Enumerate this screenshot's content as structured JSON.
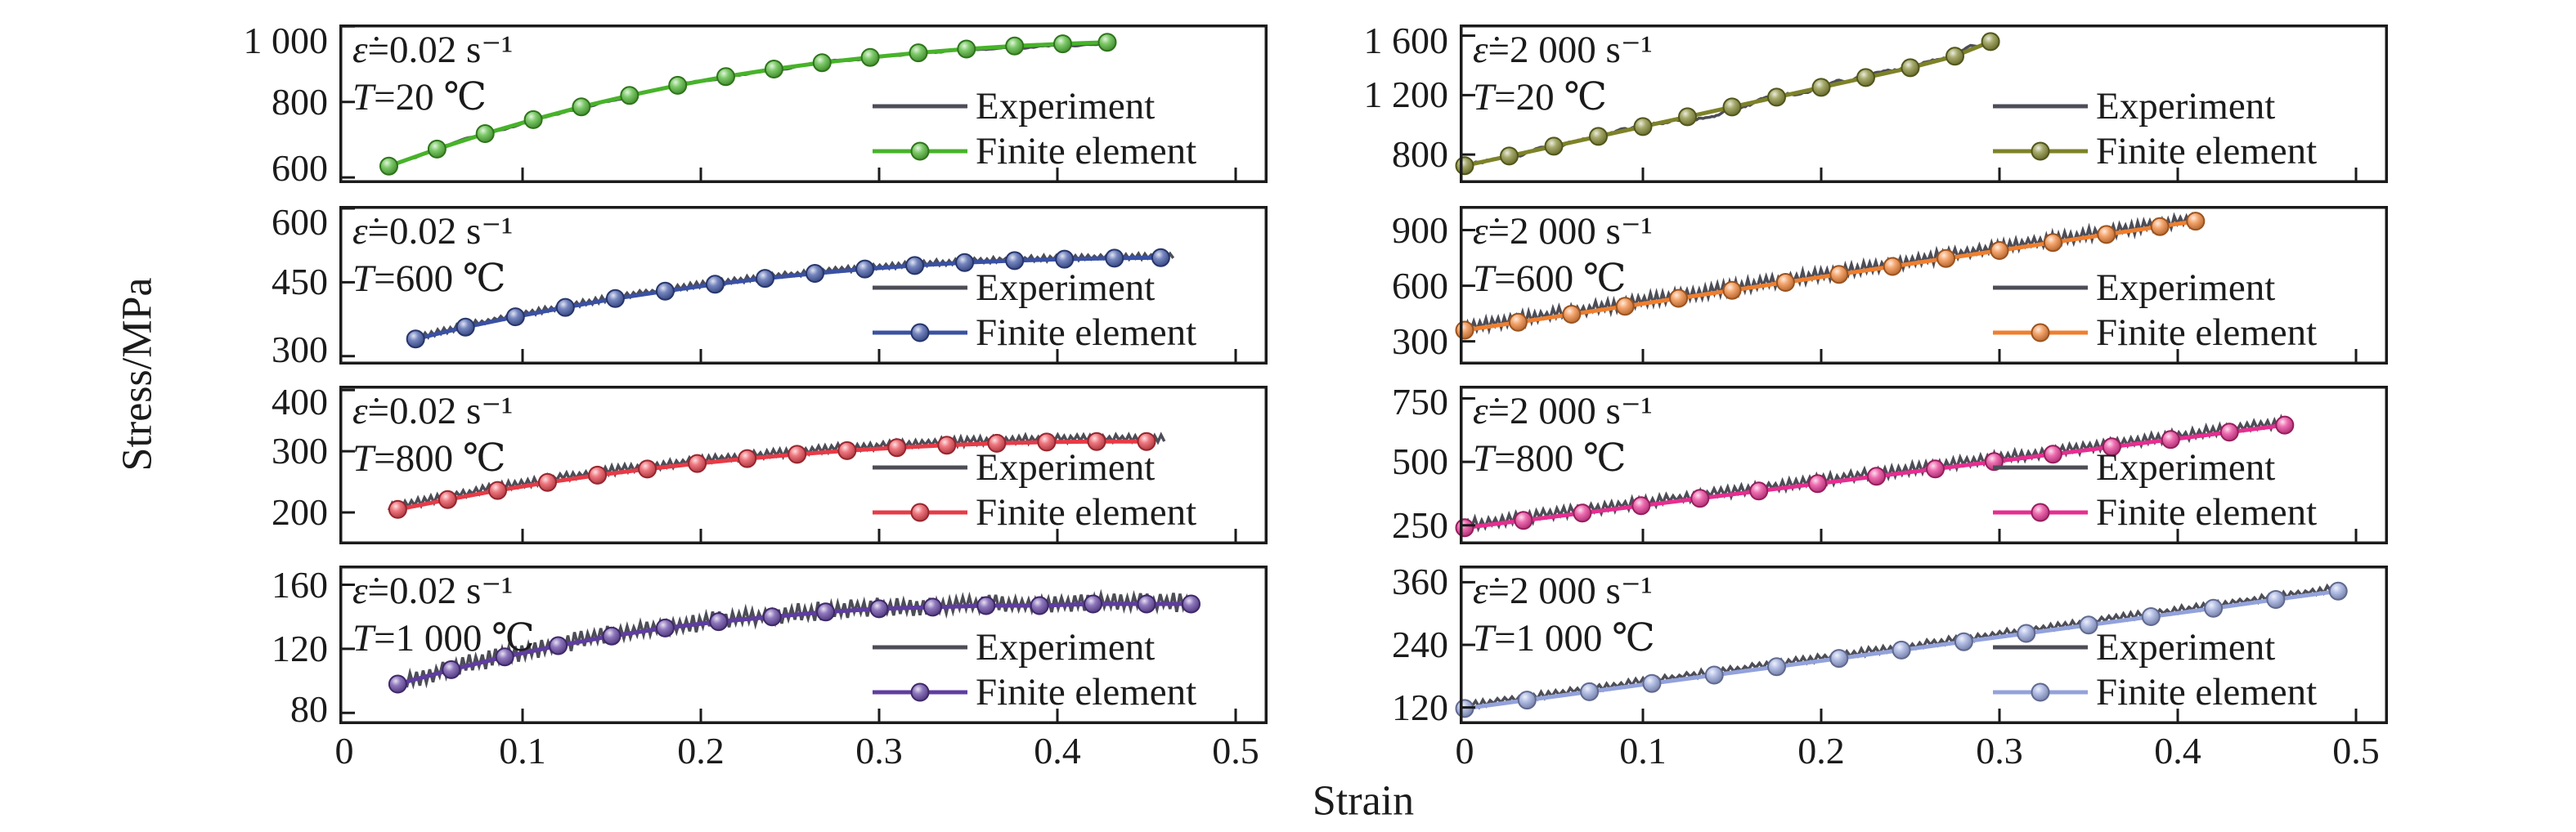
{
  "figure": {
    "ylabel": "Stress/MPa",
    "xlabel": "Strain",
    "legend": {
      "experiment": "Experiment",
      "finite_element": "Finite element"
    },
    "colors": {
      "experiment_line": "#4d4d57",
      "axis": "#1b1b1b",
      "background": "#ffffff"
    },
    "xlim": [
      0,
      0.5
    ],
    "x_ticks": [
      {
        "v": 0,
        "label": "0"
      },
      {
        "v": 0.1,
        "label": "0.1"
      },
      {
        "v": 0.2,
        "label": "0.2"
      },
      {
        "v": 0.3,
        "label": "0.3"
      },
      {
        "v": 0.4,
        "label": "0.4"
      },
      {
        "v": 0.5,
        "label": "0.5"
      }
    ]
  },
  "chart_data": [
    {
      "id": "rate0.02-T20",
      "type": "line",
      "strain_rate": {
        "symbol": "ε̇",
        "text": "=0.02 s⁻¹"
      },
      "temperature": {
        "symbol": "T",
        "text": "=20 ℃"
      },
      "ylim": [
        585,
        1005
      ],
      "y_ticks": [
        {
          "v": 600,
          "label": "600"
        },
        {
          "v": 800,
          "label": "800"
        },
        {
          "v": 1000,
          "label": "1 000"
        }
      ],
      "series": [
        {
          "name": "Experiment",
          "style": "line",
          "x_range": [
            0.03,
            0.43
          ],
          "offset": -2,
          "noise_amp": 4,
          "noise_type": "wander"
        },
        {
          "name": "Finite element",
          "style": "line+markers",
          "color": "#47b32a",
          "x": [
            0.025,
            0.052,
            0.079,
            0.106,
            0.133,
            0.16,
            0.187,
            0.214,
            0.241,
            0.268,
            0.295,
            0.322,
            0.349,
            0.376,
            0.403,
            0.428
          ],
          "y": [
            630,
            675,
            716,
            753,
            787,
            817,
            844,
            867,
            887,
            904,
            918,
            930,
            940,
            948,
            954,
            958
          ]
        }
      ]
    },
    {
      "id": "rate2000-T20",
      "type": "line",
      "strain_rate": {
        "symbol": "ε̇",
        "text": "=2 000 s⁻¹"
      },
      "temperature": {
        "symbol": "T",
        "text": "=20 ℃"
      },
      "ylim": [
        608,
        1675
      ],
      "y_ticks": [
        {
          "v": 800,
          "label": "800"
        },
        {
          "v": 1200,
          "label": "1 200"
        },
        {
          "v": 1600,
          "label": "1 600"
        }
      ],
      "series": [
        {
          "name": "Experiment",
          "style": "line",
          "x_range": [
            0,
            0.3
          ],
          "offset": 0,
          "noise_amp": 22,
          "noise_type": "wander"
        },
        {
          "name": "Finite element",
          "style": "line+markers",
          "color": "#7d8228",
          "x": [
            0,
            0.025,
            0.05,
            0.075,
            0.1,
            0.125,
            0.15,
            0.175,
            0.2,
            0.225,
            0.25,
            0.275,
            0.295
          ],
          "y": [
            725,
            790,
            856,
            922,
            988,
            1054,
            1120,
            1186,
            1252,
            1318,
            1384,
            1462,
            1560
          ]
        }
      ]
    },
    {
      "id": "rate0.02-T600",
      "type": "line",
      "strain_rate": {
        "symbol": "ε̇",
        "text": "=0.02 s⁻¹"
      },
      "temperature": {
        "symbol": "T",
        "text": "=600 ℃"
      },
      "ylim": [
        283,
        605
      ],
      "y_ticks": [
        {
          "v": 300,
          "label": "300"
        },
        {
          "v": 450,
          "label": "450"
        },
        {
          "v": 600,
          "label": "600"
        }
      ],
      "series": [
        {
          "name": "Experiment",
          "style": "line",
          "x_range": [
            0.04,
            0.465
          ],
          "offset": 3,
          "noise_amp": 6,
          "noise_type": "zigzag"
        },
        {
          "name": "Finite element",
          "style": "line+markers",
          "color": "#3a51a3",
          "x": [
            0.04,
            0.068,
            0.096,
            0.124,
            0.152,
            0.18,
            0.208,
            0.236,
            0.264,
            0.292,
            0.32,
            0.348,
            0.376,
            0.404,
            0.432,
            0.458
          ],
          "y": [
            335,
            359,
            380,
            399,
            417,
            432,
            446,
            458,
            468,
            477,
            484,
            490,
            494,
            497,
            499,
            500
          ]
        }
      ]
    },
    {
      "id": "rate2000-T600",
      "type": "line",
      "strain_rate": {
        "symbol": "ε̇",
        "text": "=2 000 s⁻¹"
      },
      "temperature": {
        "symbol": "T",
        "text": "=600 ℃"
      },
      "ylim": [
        175,
        1030
      ],
      "y_ticks": [
        {
          "v": 300,
          "label": "300"
        },
        {
          "v": 600,
          "label": "600"
        },
        {
          "v": 900,
          "label": "900"
        }
      ],
      "series": [
        {
          "name": "Experiment",
          "style": "line",
          "x_range": [
            0,
            0.41
          ],
          "offset": 15,
          "noise_amp": 35,
          "noise_type": "zigzag"
        },
        {
          "name": "Finite element",
          "style": "line+markers",
          "color": "#ef7f2f",
          "x": [
            0,
            0.03,
            0.06,
            0.09,
            0.12,
            0.15,
            0.18,
            0.21,
            0.24,
            0.27,
            0.3,
            0.33,
            0.36,
            0.39,
            0.41
          ],
          "y": [
            360,
            403,
            446,
            489,
            532,
            575,
            618,
            661,
            704,
            747,
            790,
            833,
            876,
            919,
            948
          ]
        }
      ]
    },
    {
      "id": "rate0.02-T800",
      "type": "line",
      "strain_rate": {
        "symbol": "ε̇",
        "text": "=0.02 s⁻¹"
      },
      "temperature": {
        "symbol": "T",
        "text": "=800 ℃"
      },
      "ylim": [
        148,
        407
      ],
      "y_ticks": [
        {
          "v": 200,
          "label": "200"
        },
        {
          "v": 300,
          "label": "300"
        },
        {
          "v": 400,
          "label": "400"
        }
      ],
      "series": [
        {
          "name": "Experiment",
          "style": "line",
          "x_range": [
            0.025,
            0.46
          ],
          "offset": 5,
          "noise_amp": 7,
          "noise_type": "zigzag"
        },
        {
          "name": "Finite element",
          "style": "line+markers",
          "color": "#e63b47",
          "x": [
            0.03,
            0.058,
            0.086,
            0.114,
            0.142,
            0.17,
            0.198,
            0.226,
            0.254,
            0.282,
            0.31,
            0.338,
            0.366,
            0.394,
            0.422,
            0.45
          ],
          "y": [
            205,
            221,
            236,
            249,
            261,
            271,
            280,
            288,
            295,
            301,
            306,
            310,
            313,
            315,
            316,
            316
          ]
        }
      ]
    },
    {
      "id": "rate2000-T800",
      "type": "line",
      "strain_rate": {
        "symbol": "ε̇",
        "text": "=2 000 s⁻¹"
      },
      "temperature": {
        "symbol": "T",
        "text": "=800 ℃"
      },
      "ylim": [
        175,
        800
      ],
      "y_ticks": [
        {
          "v": 250,
          "label": "250"
        },
        {
          "v": 500,
          "label": "500"
        },
        {
          "v": 750,
          "label": "750"
        }
      ],
      "series": [
        {
          "name": "Experiment",
          "style": "line",
          "x_range": [
            0,
            0.46
          ],
          "offset": 12,
          "noise_amp": 22,
          "noise_type": "zigzag"
        },
        {
          "name": "Finite element",
          "style": "line+markers",
          "color": "#e62e90",
          "x": [
            0,
            0.033,
            0.066,
            0.099,
            0.132,
            0.165,
            0.198,
            0.231,
            0.264,
            0.297,
            0.33,
            0.363,
            0.396,
            0.429,
            0.46
          ],
          "y": [
            240,
            269,
            298,
            327,
            356,
            385,
            414,
            443,
            472,
            501,
            530,
            559,
            588,
            617,
            645
          ]
        }
      ]
    },
    {
      "id": "rate0.02-T1000",
      "type": "line",
      "strain_rate": {
        "symbol": "ε̇",
        "text": "=0.02 s⁻¹"
      },
      "temperature": {
        "symbol": "T",
        "text": "=1 000 ℃"
      },
      "ylim": [
        73,
        172
      ],
      "y_ticks": [
        {
          "v": 80,
          "label": "80"
        },
        {
          "v": 120,
          "label": "120"
        },
        {
          "v": 160,
          "label": "160"
        }
      ],
      "series": [
        {
          "name": "Experiment",
          "style": "line",
          "x_range": [
            0.035,
            0.478
          ],
          "offset": 1,
          "noise_amp": 6,
          "noise_type": "zigzag"
        },
        {
          "name": "Finite element",
          "style": "line+markers",
          "color": "#5f3da0",
          "x": [
            0.03,
            0.06,
            0.09,
            0.12,
            0.15,
            0.18,
            0.21,
            0.24,
            0.27,
            0.3,
            0.33,
            0.36,
            0.39,
            0.42,
            0.45,
            0.475
          ],
          "y": [
            98,
            107,
            115,
            122,
            128,
            133,
            137,
            140,
            143,
            145,
            146,
            147,
            147,
            148,
            148,
            148
          ]
        }
      ]
    },
    {
      "id": "rate2000-T1000",
      "type": "line",
      "strain_rate": {
        "symbol": "ε̇",
        "text": "=2 000 s⁻¹"
      },
      "temperature": {
        "symbol": "T",
        "text": "=1 000 ℃"
      },
      "ylim": [
        88,
        392
      ],
      "y_ticks": [
        {
          "v": 120,
          "label": "120"
        },
        {
          "v": 240,
          "label": "240"
        },
        {
          "v": 360,
          "label": "360"
        }
      ],
      "series": [
        {
          "name": "Experiment",
          "style": "line",
          "x_range": [
            0,
            0.49
          ],
          "offset": 6,
          "noise_amp": 7,
          "noise_type": "zigzag"
        },
        {
          "name": "Finite element",
          "style": "line+markers",
          "color": "#93a2da",
          "x": [
            0,
            0.035,
            0.07,
            0.105,
            0.14,
            0.175,
            0.21,
            0.245,
            0.28,
            0.315,
            0.35,
            0.385,
            0.42,
            0.455,
            0.49
          ],
          "y": [
            118,
            134,
            150,
            166,
            182,
            198,
            214,
            230,
            246,
            262,
            278,
            294,
            310,
            327,
            343
          ]
        }
      ]
    }
  ]
}
